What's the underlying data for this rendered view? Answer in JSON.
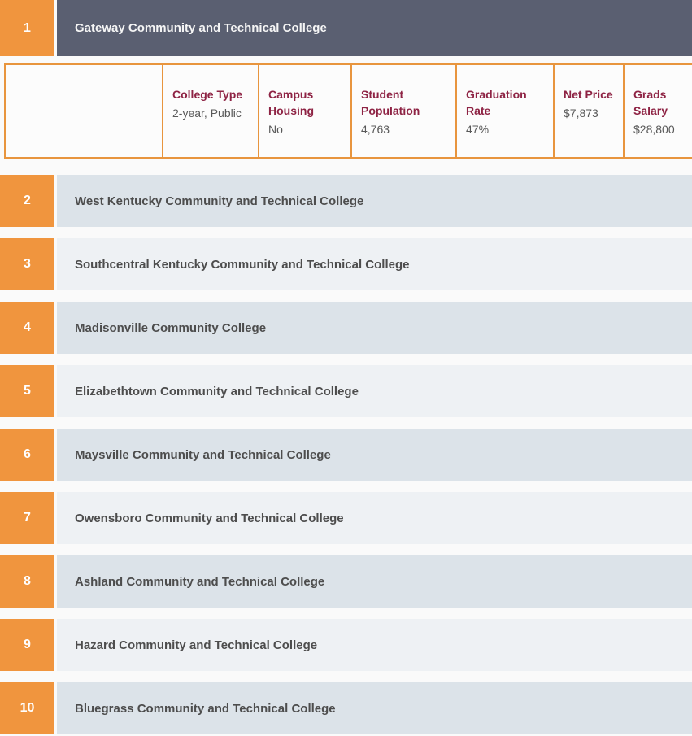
{
  "colors": {
    "accent_orange": "#f0953e",
    "panel_border_orange": "#e8953e",
    "expanded_header_slate": "#5a5f71",
    "row_shade_dark": "#dce3e9",
    "row_shade_light": "#eef1f4",
    "detail_label_maroon": "#8e2344",
    "college_name_gray": "#4d4d4d",
    "page_background": "#fafafa"
  },
  "ranking": {
    "items": [
      {
        "rank": "1",
        "name": "Gateway Community and Technical College"
      },
      {
        "rank": "2",
        "name": "West Kentucky Community and Technical College"
      },
      {
        "rank": "3",
        "name": "Southcentral Kentucky Community and Technical College"
      },
      {
        "rank": "4",
        "name": "Madisonville Community College"
      },
      {
        "rank": "5",
        "name": "Elizabethtown Community and Technical College"
      },
      {
        "rank": "6",
        "name": "Maysville Community and Technical College"
      },
      {
        "rank": "7",
        "name": "Owensboro Community and Technical College"
      },
      {
        "rank": "8",
        "name": "Ashland Community and Technical College"
      },
      {
        "rank": "9",
        "name": "Hazard Community and Technical College"
      },
      {
        "rank": "10",
        "name": "Bluegrass Community and Technical College"
      }
    ]
  },
  "details": {
    "fields": [
      {
        "label": "College Type",
        "value": "2-year, Public"
      },
      {
        "label": "Campus Housing",
        "value": "No"
      },
      {
        "label": "Student Population",
        "value": "4,763"
      },
      {
        "label": "Graduation Rate",
        "value": "47%"
      },
      {
        "label": "Net Price",
        "value": "$7,873"
      },
      {
        "label": "Grads Salary",
        "value": "$28,800"
      }
    ]
  }
}
